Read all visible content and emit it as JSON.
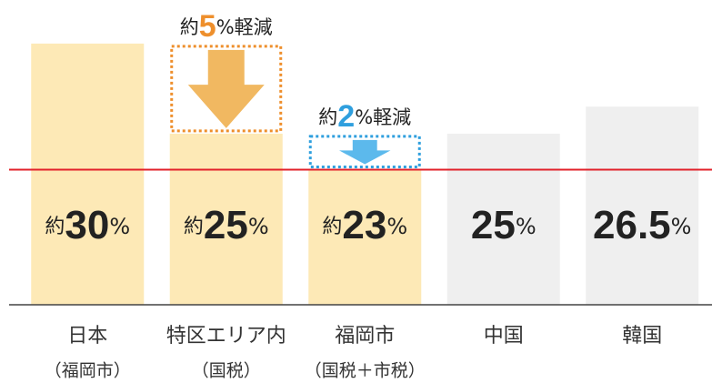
{
  "chart_data": {
    "type": "bar",
    "categories": [
      "日本",
      "特区エリア内",
      "福岡市",
      "中国",
      "韓国"
    ],
    "category_sublabels": [
      "（福岡市）",
      "（国税）",
      "（国税＋市税）",
      null,
      null
    ],
    "values": [
      30,
      25,
      23,
      25,
      26.5
    ],
    "value_labels": [
      "約30%",
      "約25%",
      "約23%",
      "25%",
      "26.5%"
    ],
    "colors": [
      "#fde9b6",
      "#fde9b6",
      "#fde9b6",
      "#efefef",
      "#efefef"
    ],
    "ylim": [
      15.5,
      30.5
    ],
    "reference_line": 23,
    "reference_color": "#e2202a",
    "annotations": [
      {
        "text": "約5%軽減",
        "color": "#ee8f2c",
        "arrow_color": "#f1b861"
      },
      {
        "text": "約2%軽減",
        "color": "#2f9fde",
        "arrow_color": "#5cb9ec"
      }
    ]
  }
}
